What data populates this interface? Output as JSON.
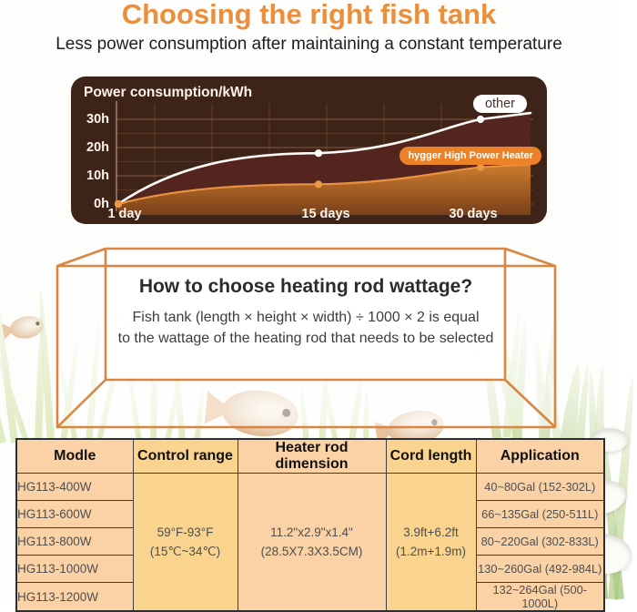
{
  "page": {
    "title": "Choosing the right fish tank",
    "subtitle": "Less power consumption after maintaining a constant temperature"
  },
  "chart_data": {
    "type": "line",
    "title": "Power consumption/kWh",
    "x": [
      1,
      15,
      30
    ],
    "x_tick_labels": [
      "1 day",
      "15 days",
      "30 days"
    ],
    "y_tick_values": [
      0,
      10,
      20,
      30
    ],
    "y_tick_labels": [
      "0h",
      "10h",
      "20h",
      "30h"
    ],
    "ylim": [
      0,
      35
    ],
    "grid": true,
    "legend_position": "inline-pills",
    "series": [
      {
        "name": "other",
        "values": [
          0,
          18,
          30
        ],
        "color": "#FFFFFF"
      },
      {
        "name": "hygger High Power Heater",
        "values": [
          0,
          7,
          13
        ],
        "color": "#EC8E3C"
      }
    ]
  },
  "tank": {
    "heading": "How to choose heating rod wattage?",
    "line1": "Fish tank (length × height × width) ÷ 1000 × 2 is equal",
    "line2": "to the wattage of the heating rod that needs to be selected"
  },
  "table": {
    "headers": [
      "Modle",
      "Control range",
      "Heater rod dimension",
      "Cord length",
      "Application"
    ],
    "models": [
      "HG113-400W",
      "HG113-600W",
      "HG113-800W",
      "HG113-1000W",
      "HG113-1200W"
    ],
    "control_range": {
      "line1": "59°F-93°F",
      "line2": "(15℃~34℃)"
    },
    "heater_rod_dimension": {
      "line1": "11.2\"x2.9\"x1.4\"",
      "line2": "(28.5X7.3X3.5CM)"
    },
    "cord_length": {
      "line1": "3.9ft+6.2ft",
      "line2": "(1.2m+1.9m)"
    },
    "applications": [
      "40~80Gal (152-302L)",
      "66~135Gal (250-511L)",
      "80~220Gal (302-833L)",
      "130~260Gal (492-984L)",
      "132~264Gal (500-1000L)"
    ]
  },
  "colors": {
    "accent_orange": "#EC8E3C",
    "chart_panel_bg": "#3E2318",
    "chart_other_line": "#FFFFFF",
    "chart_hygger_line": "#EA9240",
    "chart_maroon_fill": "#54241E",
    "tank_line": "#D98643",
    "table_peach": "#FBD1A6",
    "table_gold": "#FAD38E",
    "table_border": "#3C3C3C"
  }
}
